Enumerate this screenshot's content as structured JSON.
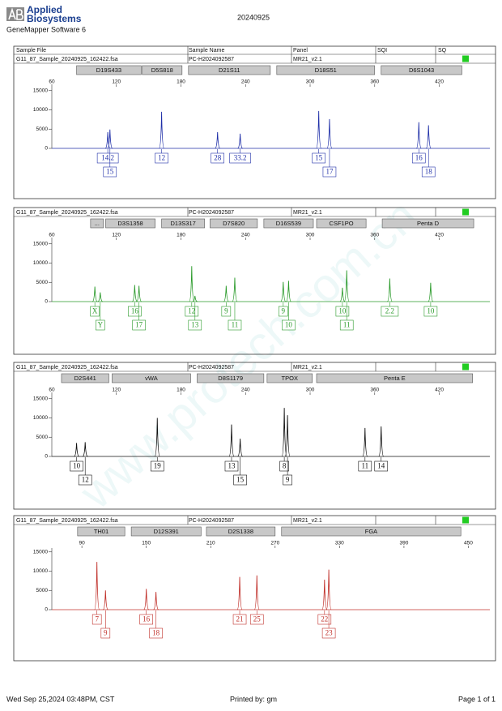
{
  "header": {
    "brand_line1": "Applied",
    "brand_line2": "Biosystems",
    "software": "GeneMapper Software 6",
    "run_date": "20240925"
  },
  "columns": [
    "Sample File",
    "Sample Name",
    "Panel",
    "SQI",
    "SQ"
  ],
  "footer": {
    "printed_at": "Wed Sep 25,2024 03:48PM, CST",
    "printed_by": "Printed by: gm",
    "page": "Page 1 of 1"
  },
  "watermark": "www.protech.com.cn",
  "chart_data": [
    {
      "type": "electropherogram",
      "sample_file": "G11_87_Sample_20240925_162422.fsa",
      "sample_name": "PC-H2024092587",
      "panel": "MR21_v2.1",
      "status_color": "#22cc22",
      "markers": [
        {
          "name": "D19S433",
          "start": 83,
          "end": 143
        },
        {
          "name": "D5S818",
          "start": 144,
          "end": 181
        },
        {
          "name": "D21S11",
          "start": 187,
          "end": 263
        },
        {
          "name": "D18S51",
          "start": 269,
          "end": 360
        },
        {
          "name": "D6S1043",
          "start": 366,
          "end": 441
        }
      ],
      "xlim": [
        60,
        467
      ],
      "xticks": [
        60,
        120,
        180,
        240,
        300,
        360,
        420
      ],
      "ylim": [
        0,
        16000
      ],
      "yticks": [
        0,
        5000,
        10000,
        15000
      ],
      "color": "#1f2fa8",
      "x": [
        112,
        114,
        162,
        214,
        235,
        308,
        318,
        401,
        410
      ],
      "values": [
        4200,
        4900,
        9500,
        4200,
        3800,
        9700,
        7600,
        6800,
        6000
      ],
      "labels": [
        "14.2",
        "15",
        "12",
        "28",
        "33.2",
        "15",
        "17",
        "16",
        "18"
      ]
    },
    {
      "type": "electropherogram",
      "sample_file": "G11_87_Sample_20240925_162422.fsa",
      "sample_name": "PC-H2024092587",
      "panel": "MR21_v2.1",
      "status_color": "#22cc22",
      "markers": [
        {
          "name": "...",
          "start": 96,
          "end": 108
        },
        {
          "name": "D3S1358",
          "start": 110,
          "end": 156
        },
        {
          "name": "D13S317",
          "start": 162,
          "end": 202
        },
        {
          "name": "D7S820",
          "start": 207,
          "end": 251
        },
        {
          "name": "D16S539",
          "start": 257,
          "end": 303
        },
        {
          "name": "CSF1PO",
          "start": 306,
          "end": 352
        },
        {
          "name": "Penta D",
          "start": 367,
          "end": 452
        }
      ],
      "xlim": [
        60,
        467
      ],
      "xticks": [
        60,
        120,
        180,
        240,
        300,
        360,
        420
      ],
      "ylim": [
        0,
        16000
      ],
      "yticks": [
        0,
        5000,
        10000,
        15000
      ],
      "color": "#2a9a2a",
      "x": [
        100,
        105,
        137,
        141,
        190,
        193,
        222,
        230,
        275,
        280,
        330,
        334,
        374,
        412
      ],
      "values": [
        3900,
        2400,
        4300,
        4100,
        9200,
        1500,
        4100,
        6200,
        5100,
        5400,
        3600,
        8100,
        6000,
        4900
      ],
      "labels": [
        "X",
        "Y",
        "16",
        "17",
        "12",
        "13",
        "9",
        "11",
        "9",
        "10",
        "10",
        "11",
        "2.2",
        "10"
      ]
    },
    {
      "type": "electropherogram",
      "sample_file": "G11_87_Sample_20240925_162422.fsa",
      "sample_name": "PC-H2024092587",
      "panel": "MR21_v2.1",
      "status_color": "#22cc22",
      "markers": [
        {
          "name": "D2S441",
          "start": 69,
          "end": 113
        },
        {
          "name": "vWA",
          "start": 116,
          "end": 189
        },
        {
          "name": "D8S1179",
          "start": 195,
          "end": 257
        },
        {
          "name": "TPOX",
          "start": 260,
          "end": 302
        },
        {
          "name": "Penta E",
          "start": 306,
          "end": 451
        }
      ],
      "xlim": [
        60,
        467
      ],
      "xticks": [
        60,
        120,
        180,
        240,
        300,
        360,
        420
      ],
      "ylim": [
        0,
        16000
      ],
      "yticks": [
        0,
        5000,
        10000,
        15000
      ],
      "color": "#111111",
      "x": [
        83,
        91,
        158,
        227,
        235,
        276,
        279,
        351,
        366
      ],
      "values": [
        3500,
        3700,
        10000,
        8300,
        4600,
        12600,
        10700,
        7400,
        7800
      ],
      "labels": [
        "10",
        "12",
        "19",
        "13",
        "15",
        "8",
        "9",
        "11",
        "14"
      ]
    },
    {
      "type": "electropherogram",
      "sample_file": "G11_87_Sample_20240925_162422.fsa",
      "sample_name": "PC-H2024092587",
      "panel": "MR21_v2.1",
      "status_color": "#22cc22",
      "markers": [
        {
          "name": "TH01",
          "start": 86,
          "end": 130
        },
        {
          "name": "D12S391",
          "start": 136,
          "end": 201
        },
        {
          "name": "D2S1338",
          "start": 206,
          "end": 270
        },
        {
          "name": "FGA",
          "start": 276,
          "end": 443
        }
      ],
      "xlim": [
        62,
        470
      ],
      "xticks": [
        90,
        150,
        210,
        270,
        330,
        390,
        450
      ],
      "ylim": [
        0,
        16000
      ],
      "yticks": [
        0,
        5000,
        10000,
        15000
      ],
      "color": "#c0302a",
      "x": [
        104,
        112,
        150,
        159,
        237,
        253,
        316,
        320
      ],
      "values": [
        12400,
        5000,
        5400,
        4600,
        8500,
        8900,
        7800,
        10400
      ],
      "labels": [
        "7",
        "9",
        "16",
        "18",
        "21",
        "25",
        "22",
        "23"
      ]
    }
  ]
}
